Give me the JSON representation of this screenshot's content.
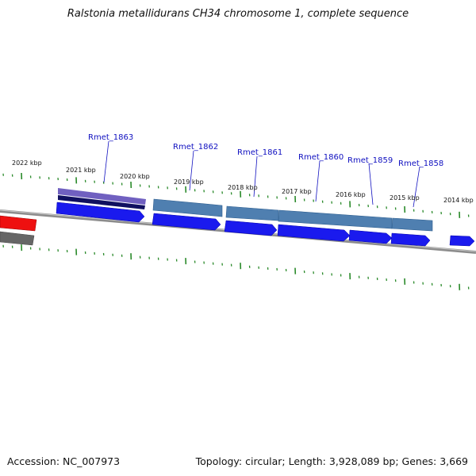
{
  "title": "Ralstonia metallidurans CH34 chromosome 1, complete sequence",
  "footer": {
    "accession": "Accession: NC_007973",
    "summary": "Topology: circular; Length: 3,928,089 bp; Genes: 3,669"
  },
  "kbp_labels": [
    "2022 kbp",
    "2021 kbp",
    "2020 kbp",
    "2019 kbp",
    "2018 kbp",
    "2017 kbp",
    "2016 kbp",
    "2015 kbp",
    "2014 kbp"
  ],
  "gene_labels": [
    "Rmet_1863",
    "Rmet_1862",
    "Rmet_1861",
    "Rmet_1860",
    "Rmet_1859",
    "Rmet_1858"
  ],
  "colors": {
    "backbone": "#8c8c8c",
    "tick": "#2a8a2a",
    "gene_forward": "#1a1aee",
    "gene_steelblue": "#4f7fb0",
    "gene_purple": "#7060c0",
    "gene_navy": "#101060",
    "gene_red": "#ee1010",
    "gene_gray": "#666666",
    "label": "#1010c0"
  }
}
